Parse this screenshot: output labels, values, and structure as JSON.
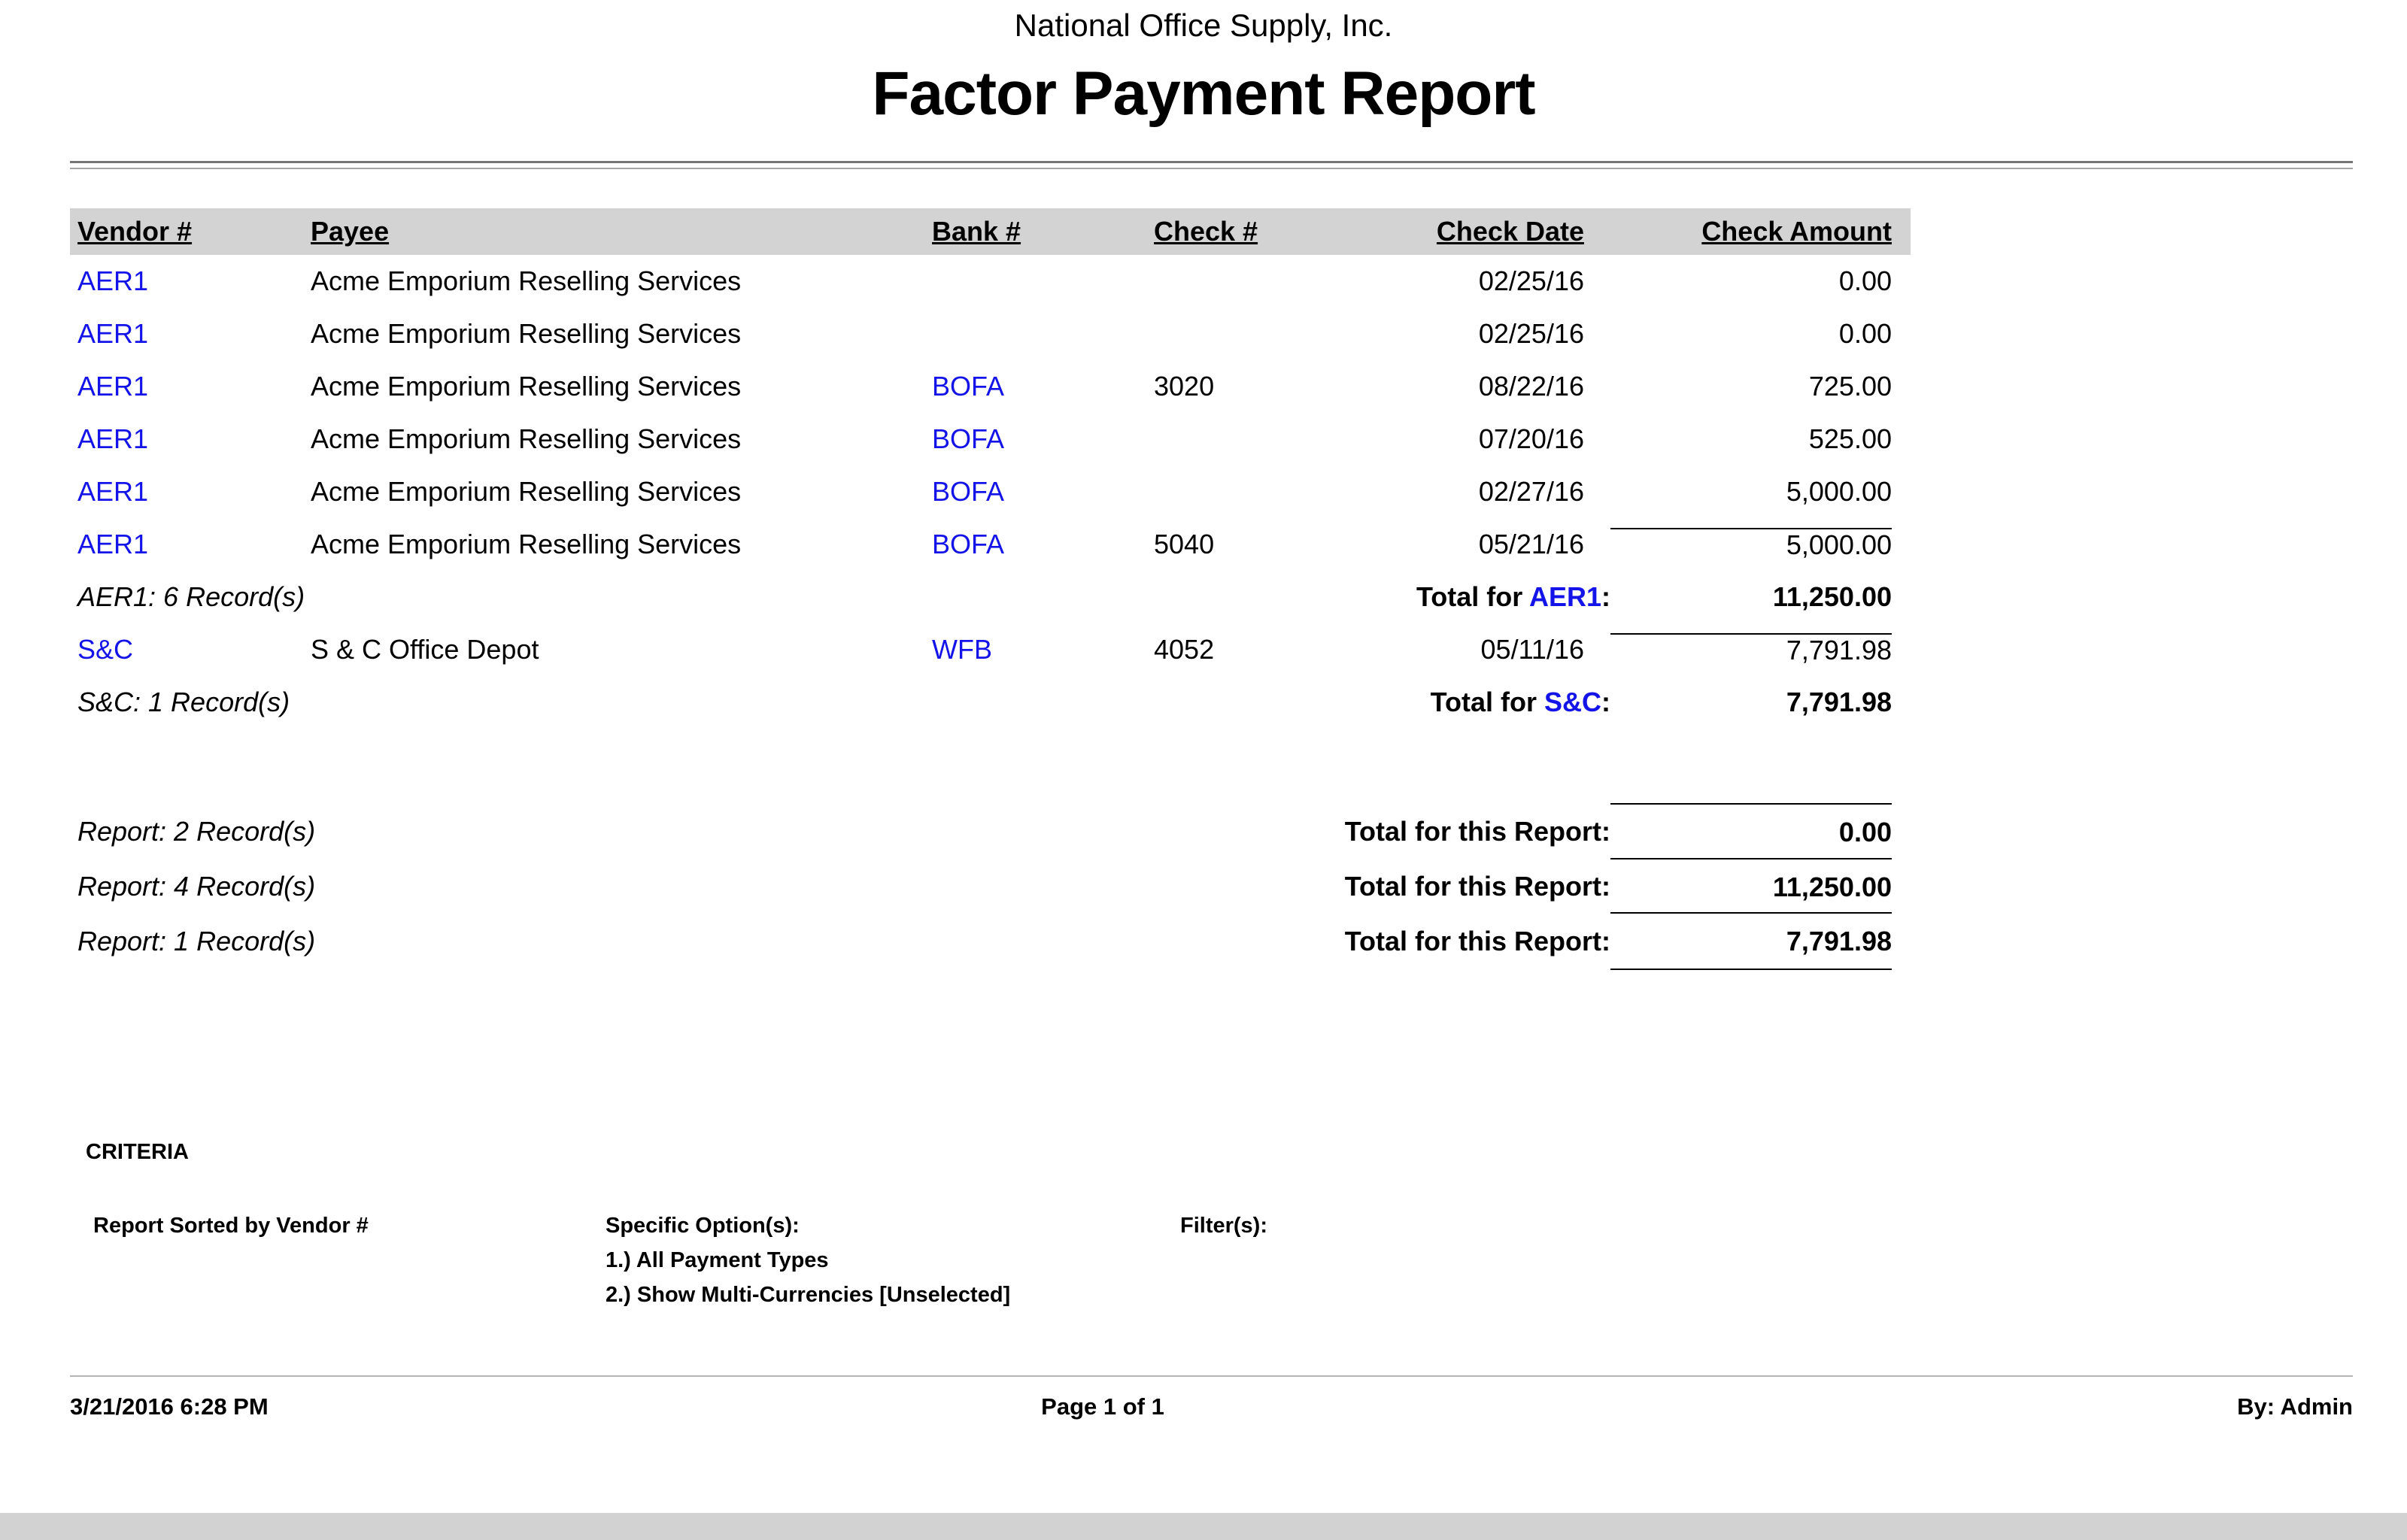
{
  "page": {
    "company": "National Office Supply, Inc.",
    "title": "Factor Payment Report"
  },
  "colors": {
    "link": "#1414e8",
    "band": "#d3d3d3"
  },
  "table": {
    "headers": {
      "vendor": "Vendor #",
      "payee": "Payee",
      "bank": "Bank #",
      "check": "Check #",
      "date": "Check Date",
      "amount": "Check Amount"
    },
    "rows": [
      {
        "vendor": "AER1",
        "payee": "Acme Emporium Reselling Services",
        "bank": "",
        "check": "",
        "date": "02/25/16",
        "amount": "0.00"
      },
      {
        "vendor": "AER1",
        "payee": "Acme Emporium Reselling Services",
        "bank": "",
        "check": "",
        "date": "02/25/16",
        "amount": "0.00"
      },
      {
        "vendor": "AER1",
        "payee": "Acme Emporium Reselling Services",
        "bank": "BOFA",
        "check": "3020",
        "date": "08/22/16",
        "amount": "725.00"
      },
      {
        "vendor": "AER1",
        "payee": "Acme Emporium Reselling Services",
        "bank": "BOFA",
        "check": "",
        "date": "07/20/16",
        "amount": "525.00"
      },
      {
        "vendor": "AER1",
        "payee": "Acme Emporium Reselling Services",
        "bank": "BOFA",
        "check": "",
        "date": "02/27/16",
        "amount": "5,000.00"
      },
      {
        "vendor": "AER1",
        "payee": "Acme Emporium Reselling Services",
        "bank": "BOFA",
        "check": "5040",
        "date": "05/21/16",
        "amount": "5,000.00"
      },
      {
        "vendor": "S&C",
        "payee": "S & C Office Depot",
        "bank": "WFB",
        "check": "4052",
        "date": "05/11/16",
        "amount": "7,791.98"
      }
    ]
  },
  "groups": [
    {
      "summary": "AER1: 6 Record(s)",
      "total_prefix": "Total for ",
      "vendor": "AER1",
      "colon": ":",
      "total": "11,250.00"
    },
    {
      "summary": "S&C: 1 Record(s)",
      "total_prefix": "Total for ",
      "vendor": "S&C",
      "colon": ":",
      "total": "7,791.98"
    }
  ],
  "report_totals": [
    {
      "left": "Report: 2 Record(s)",
      "label": "Total for this Report:",
      "amount": "0.00"
    },
    {
      "left": "Report: 4 Record(s)",
      "label": "Total for this Report:",
      "amount": "11,250.00"
    },
    {
      "left": "Report: 1 Record(s)",
      "label": "Total for this Report:",
      "amount": "7,791.98"
    }
  ],
  "criteria": {
    "heading": "CRITERIA",
    "sorted_by": "Report Sorted by Vendor #",
    "options_label": "Specific Option(s):",
    "option1": "1.) All Payment Types",
    "option2": "2.) Show Multi-Currencies [Unselected]",
    "filters_label": "Filter(s):"
  },
  "footer": {
    "datetime": "3/21/2016 6:28 PM",
    "page": "Page 1 of 1",
    "by": "By: Admin"
  }
}
